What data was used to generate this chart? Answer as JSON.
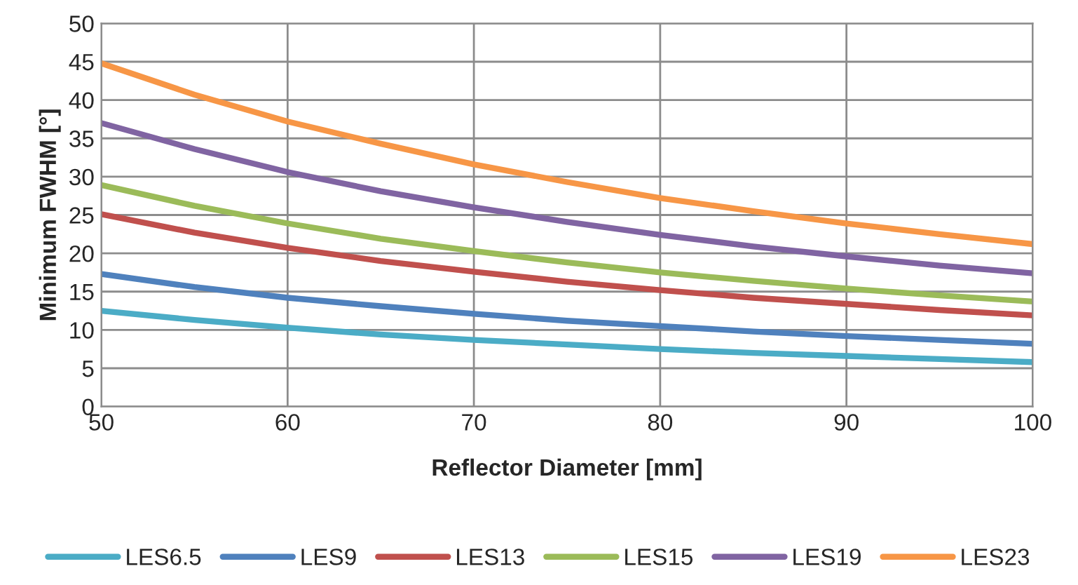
{
  "chart_data": {
    "type": "line",
    "xlabel": "Reflector Diameter [mm]",
    "ylabel": "Minimum FWHM [°]",
    "x": [
      50,
      55,
      60,
      65,
      70,
      75,
      80,
      85,
      90,
      95,
      100
    ],
    "series": [
      {
        "name": "LES6.5",
        "color": "#4bacc6",
        "values": [
          12.5,
          11.3,
          10.3,
          9.4,
          8.7,
          8.1,
          7.5,
          7.0,
          6.6,
          6.2,
          5.8
        ]
      },
      {
        "name": "LES9",
        "color": "#4f81bd",
        "values": [
          17.3,
          15.6,
          14.2,
          13.1,
          12.1,
          11.2,
          10.5,
          9.8,
          9.2,
          8.7,
          8.2
        ]
      },
      {
        "name": "LES13",
        "color": "#c0504d",
        "values": [
          25.1,
          22.7,
          20.7,
          19.0,
          17.6,
          16.3,
          15.2,
          14.2,
          13.4,
          12.6,
          11.9
        ]
      },
      {
        "name": "LES15",
        "color": "#9bbb59",
        "values": [
          28.9,
          26.2,
          23.9,
          21.9,
          20.3,
          18.8,
          17.5,
          16.4,
          15.4,
          14.5,
          13.7
        ]
      },
      {
        "name": "LES19",
        "color": "#8064a2",
        "values": [
          37.0,
          33.6,
          30.6,
          28.1,
          26.0,
          24.1,
          22.4,
          20.9,
          19.6,
          18.4,
          17.4
        ]
      },
      {
        "name": "LES23",
        "color": "#f79646",
        "values": [
          44.8,
          40.7,
          37.2,
          34.3,
          31.6,
          29.3,
          27.2,
          25.5,
          23.9,
          22.5,
          21.2
        ]
      }
    ],
    "xlim": [
      50,
      100
    ],
    "xticks": [
      50,
      60,
      70,
      80,
      90,
      100
    ],
    "ylim": [
      0,
      50
    ],
    "yticks": [
      0,
      5,
      10,
      15,
      20,
      25,
      30,
      35,
      40,
      45,
      50
    ],
    "grid": true,
    "legend": "bottom",
    "marker": "none",
    "line_style": "solid"
  }
}
